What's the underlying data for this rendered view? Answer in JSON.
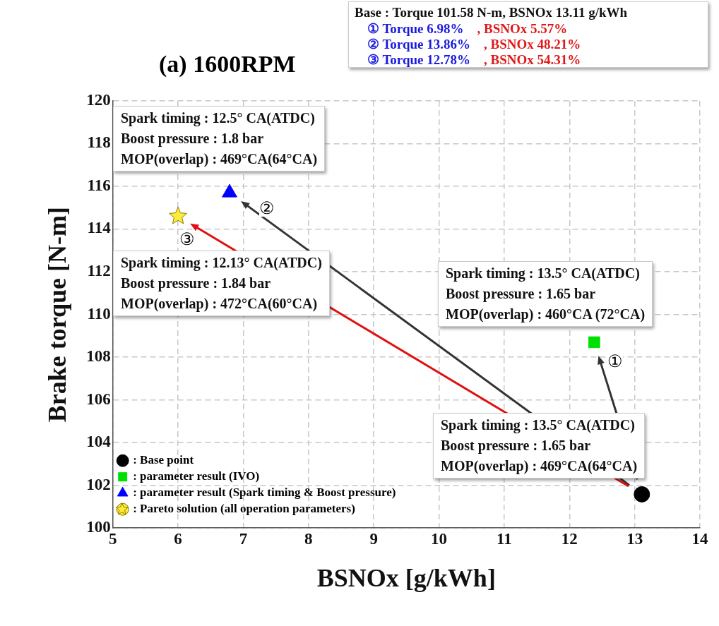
{
  "chart_data": {
    "type": "scatter",
    "title": "(a) 1600RPM",
    "xlabel": "BSNOx [g/kWh]",
    "ylabel": "Brake torque [N-m]",
    "xlim": [
      5,
      14
    ],
    "xticks": [
      5,
      6,
      7,
      8,
      9,
      10,
      11,
      12,
      13,
      14
    ],
    "ylim": [
      100,
      120
    ],
    "yticks": [
      100,
      102,
      104,
      106,
      108,
      110,
      112,
      114,
      116,
      118,
      120
    ],
    "grid": true,
    "legend": "bottom left",
    "series": [
      {
        "name": ": Base point",
        "color": "#000000",
        "marker": "circle",
        "x": [
          13.11
        ],
        "values": [
          101.58
        ]
      },
      {
        "name": ": parameter result (IVO)",
        "color": "#00e000",
        "marker": "square",
        "x": [
          12.38
        ],
        "values": [
          108.7
        ]
      },
      {
        "name": ": parameter result (Spark timing & Boost pressure)",
        "color": "#0000ff",
        "marker": "triangle",
        "x": [
          6.79
        ],
        "values": [
          115.7
        ]
      },
      {
        "name": ": Pareto solution (all operation parameters)",
        "color": "#ffeb3b",
        "marker": "star",
        "x": [
          6.0
        ],
        "values": [
          114.6
        ]
      }
    ],
    "annotations": [
      "Base : Torque 101.58 N-m, BSNOx 13.11 g/kWh",
      "① Torque 6.98%    , BSNOx 5.57%",
      "② Torque 13.86%    , BSNOx 48.21%",
      "③ Torque 12.78%    , BSNOx 54.31%",
      "Spark timing : 12.5° CA(ATDC)\nBoost pressure : 1.8 bar\nMOP(overlap) : 469°CA(64°CA)",
      "Spark timing : 12.13° CA(ATDC)\nBoost pressure : 1.84 bar\nMOP(overlap) : 472°CA(60°CA)",
      "Spark timing : 13.5° CA(ATDC)\nBoost pressure : 1.65 bar\nMOP(overlap) : 460°CA (72°CA)",
      "Spark timing : 13.5° CA(ATDC)\nBoost pressure : 1.65 bar\nMOP(overlap) : 469°CA(64°CA)",
      {
        "text": "①",
        "x": 12.38,
        "y": 108.7
      },
      {
        "text": "②",
        "x": 6.79,
        "y": 115.7
      },
      {
        "text": "③",
        "x": 6.0,
        "y": 114.6
      }
    ]
  }
}
